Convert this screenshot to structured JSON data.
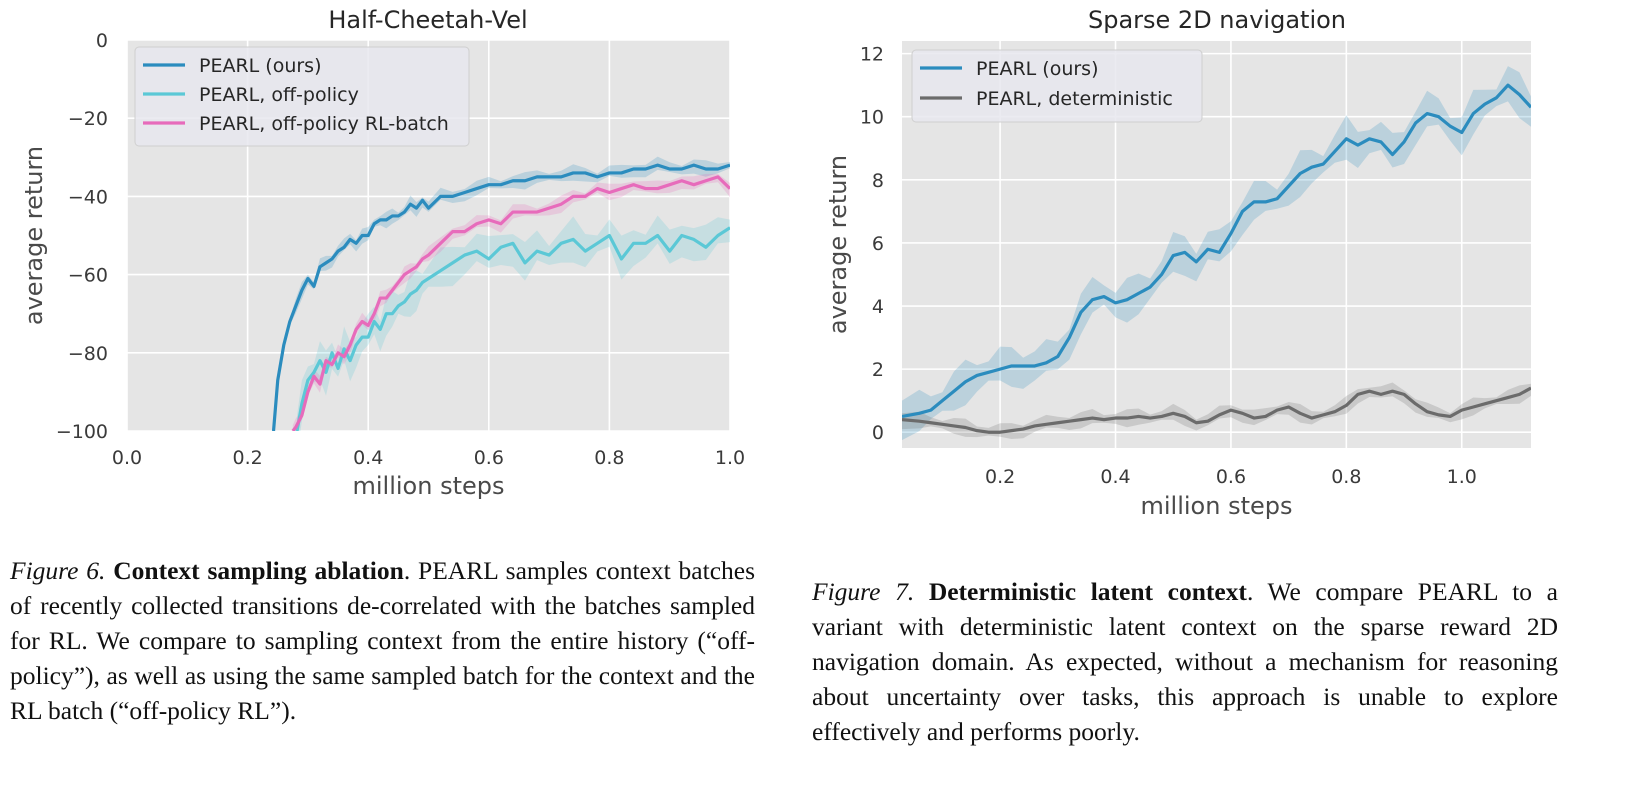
{
  "chart_data": [
    {
      "type": "line",
      "title": "Half-Cheetah-Vel",
      "xlabel": "million steps",
      "ylabel": "average return",
      "xlim": [
        0.0,
        1.0
      ],
      "ylim": [
        -100,
        0
      ],
      "xticks": [
        "0.0",
        "0.2",
        "0.4",
        "0.6",
        "0.8",
        "1.0"
      ],
      "yticks": [
        "0",
        "−20",
        "−40",
        "−60",
        "−80",
        "−100"
      ],
      "grid": true,
      "legend_position": "top-left",
      "series": [
        {
          "name": "PEARL (ours)",
          "color": "#2b8cbe",
          "band": 1.5,
          "x": [
            0.243,
            0.25,
            0.26,
            0.27,
            0.28,
            0.29,
            0.3,
            0.31,
            0.32,
            0.33,
            0.34,
            0.35,
            0.36,
            0.37,
            0.38,
            0.39,
            0.4,
            0.41,
            0.42,
            0.43,
            0.44,
            0.45,
            0.46,
            0.47,
            0.48,
            0.49,
            0.5,
            0.52,
            0.54,
            0.56,
            0.58,
            0.6,
            0.62,
            0.64,
            0.66,
            0.68,
            0.7,
            0.72,
            0.74,
            0.76,
            0.78,
            0.8,
            0.82,
            0.84,
            0.86,
            0.88,
            0.9,
            0.92,
            0.94,
            0.96,
            0.98,
            1.0
          ],
          "y": [
            -100,
            -87,
            -78,
            -72,
            -68,
            -64,
            -61,
            -63,
            -58,
            -57,
            -56,
            -54,
            -53,
            -51,
            -52,
            -50,
            -50,
            -47,
            -46,
            -46,
            -45,
            -45,
            -44,
            -42,
            -43,
            -41,
            -43,
            -40,
            -40,
            -39,
            -38,
            -37,
            -37,
            -36,
            -36,
            -35,
            -35,
            -35,
            -34,
            -34,
            -35,
            -34,
            -34,
            -33,
            -33,
            -32,
            -33,
            -33,
            -32,
            -33,
            -33,
            -32
          ]
        },
        {
          "name": "PEARL, off-policy",
          "color": "#5bc8d6",
          "band": 4,
          "x": [
            0.282,
            0.29,
            0.3,
            0.31,
            0.32,
            0.33,
            0.34,
            0.35,
            0.36,
            0.37,
            0.38,
            0.39,
            0.4,
            0.41,
            0.42,
            0.43,
            0.44,
            0.45,
            0.46,
            0.47,
            0.48,
            0.49,
            0.5,
            0.52,
            0.54,
            0.56,
            0.58,
            0.6,
            0.62,
            0.64,
            0.66,
            0.68,
            0.7,
            0.72,
            0.74,
            0.76,
            0.78,
            0.8,
            0.82,
            0.84,
            0.86,
            0.88,
            0.9,
            0.92,
            0.94,
            0.96,
            0.98,
            1.0
          ],
          "y": [
            -100,
            -93,
            -87,
            -85,
            -82,
            -85,
            -80,
            -84,
            -79,
            -82,
            -78,
            -76,
            -76,
            -72,
            -74,
            -70,
            -70,
            -68,
            -67,
            -65,
            -64,
            -62,
            -61,
            -59,
            -57,
            -55,
            -54,
            -56,
            -53,
            -52,
            -57,
            -54,
            -55,
            -52,
            -51,
            -54,
            -52,
            -50,
            -56,
            -52,
            -52,
            -50,
            -54,
            -50,
            -51,
            -53,
            -50,
            -48
          ]
        },
        {
          "name": "PEARL, off-policy RL-batch",
          "color": "#e76bbb",
          "band": 1.5,
          "x": [
            0.275,
            0.28,
            0.29,
            0.3,
            0.31,
            0.32,
            0.33,
            0.34,
            0.35,
            0.36,
            0.37,
            0.38,
            0.39,
            0.4,
            0.41,
            0.42,
            0.43,
            0.44,
            0.45,
            0.46,
            0.47,
            0.48,
            0.49,
            0.5,
            0.52,
            0.54,
            0.56,
            0.58,
            0.6,
            0.62,
            0.64,
            0.66,
            0.68,
            0.7,
            0.72,
            0.74,
            0.76,
            0.78,
            0.8,
            0.82,
            0.84,
            0.86,
            0.88,
            0.9,
            0.92,
            0.94,
            0.96,
            0.98,
            1.0
          ],
          "y": [
            -100,
            -99,
            -96,
            -90,
            -86,
            -88,
            -82,
            -83,
            -80,
            -81,
            -78,
            -74,
            -72,
            -73,
            -70,
            -66,
            -66,
            -64,
            -62,
            -60,
            -59,
            -58,
            -56,
            -55,
            -52,
            -49,
            -49,
            -47,
            -46,
            -47,
            -44,
            -44,
            -44,
            -43,
            -42,
            -40,
            -40,
            -38,
            -39,
            -38,
            -37,
            -38,
            -38,
            -37,
            -36,
            -37,
            -36,
            -35,
            -38
          ]
        }
      ]
    },
    {
      "type": "line",
      "title": "Sparse 2D navigation",
      "xlabel": "million steps",
      "ylabel": "average return",
      "xlim": [
        0.03,
        1.12
      ],
      "ylim": [
        -0.5,
        12.4
      ],
      "xticks": [
        "0.2",
        "0.4",
        "0.6",
        "0.8",
        "1.0"
      ],
      "yticks": [
        "12",
        "10",
        "8",
        "6",
        "4",
        "2",
        "0"
      ],
      "grid": true,
      "legend_position": "top-left",
      "series": [
        {
          "name": "PEARL (ours)",
          "color": "#2b8cbe",
          "band": 0.5,
          "x": [
            0.03,
            0.06,
            0.08,
            0.1,
            0.12,
            0.14,
            0.16,
            0.18,
            0.2,
            0.22,
            0.24,
            0.26,
            0.28,
            0.3,
            0.32,
            0.34,
            0.36,
            0.38,
            0.4,
            0.42,
            0.44,
            0.46,
            0.48,
            0.5,
            0.52,
            0.54,
            0.56,
            0.58,
            0.6,
            0.62,
            0.64,
            0.66,
            0.68,
            0.7,
            0.72,
            0.74,
            0.76,
            0.78,
            0.8,
            0.82,
            0.84,
            0.86,
            0.88,
            0.9,
            0.92,
            0.94,
            0.96,
            0.98,
            1.0,
            1.02,
            1.04,
            1.06,
            1.08,
            1.1,
            1.12
          ],
          "y": [
            0.5,
            0.6,
            0.7,
            1.0,
            1.3,
            1.6,
            1.8,
            1.9,
            2.0,
            2.1,
            2.1,
            2.1,
            2.2,
            2.4,
            3.0,
            3.8,
            4.2,
            4.3,
            4.1,
            4.2,
            4.4,
            4.6,
            5.0,
            5.6,
            5.7,
            5.4,
            5.8,
            5.7,
            6.3,
            7.0,
            7.3,
            7.3,
            7.4,
            7.8,
            8.2,
            8.4,
            8.5,
            8.9,
            9.3,
            9.1,
            9.3,
            9.2,
            8.8,
            9.2,
            9.8,
            10.1,
            10.0,
            9.7,
            9.5,
            10.1,
            10.4,
            10.6,
            11.0,
            10.7,
            10.3
          ]
        },
        {
          "name": "PEARL, deterministic",
          "color": "#6b6b6b",
          "band": 0.2,
          "x": [
            0.03,
            0.06,
            0.08,
            0.1,
            0.12,
            0.14,
            0.16,
            0.18,
            0.2,
            0.22,
            0.24,
            0.26,
            0.28,
            0.3,
            0.32,
            0.34,
            0.36,
            0.38,
            0.4,
            0.42,
            0.44,
            0.46,
            0.48,
            0.5,
            0.52,
            0.54,
            0.56,
            0.58,
            0.6,
            0.62,
            0.64,
            0.66,
            0.68,
            0.7,
            0.72,
            0.74,
            0.76,
            0.78,
            0.8,
            0.82,
            0.84,
            0.86,
            0.88,
            0.9,
            0.92,
            0.94,
            0.96,
            0.98,
            1.0,
            1.02,
            1.04,
            1.06,
            1.08,
            1.1,
            1.12
          ],
          "y": [
            0.4,
            0.35,
            0.3,
            0.25,
            0.2,
            0.15,
            0.05,
            0.0,
            0.0,
            0.05,
            0.1,
            0.2,
            0.25,
            0.3,
            0.35,
            0.4,
            0.45,
            0.4,
            0.45,
            0.45,
            0.5,
            0.45,
            0.5,
            0.6,
            0.5,
            0.3,
            0.35,
            0.55,
            0.7,
            0.6,
            0.45,
            0.5,
            0.7,
            0.8,
            0.6,
            0.45,
            0.55,
            0.65,
            0.85,
            1.2,
            1.3,
            1.2,
            1.3,
            1.2,
            0.9,
            0.65,
            0.55,
            0.5,
            0.7,
            0.8,
            0.9,
            1.0,
            1.1,
            1.2,
            1.4
          ]
        }
      ]
    }
  ],
  "captions": {
    "left": {
      "fig": "Figure 6.",
      "bold": "Context sampling ablation",
      "text": ".  PEARL samples context batches of recently collected transitions de-correlated with the batches sampled for RL. We compare to sampling context from the entire history (“off-policy”), as well as using the same sampled batch for the context and the RL batch (“off-policy RL”)."
    },
    "right": {
      "fig": "Figure 7.",
      "bold": "Deterministic latent context",
      "text": ".  We compare PEARL to a variant with deterministic latent context on the sparse reward 2D navigation domain.  As expected, without a mechanism for reasoning about uncertainty over tasks, this approach is unable to explore effectively and performs poorly."
    }
  }
}
